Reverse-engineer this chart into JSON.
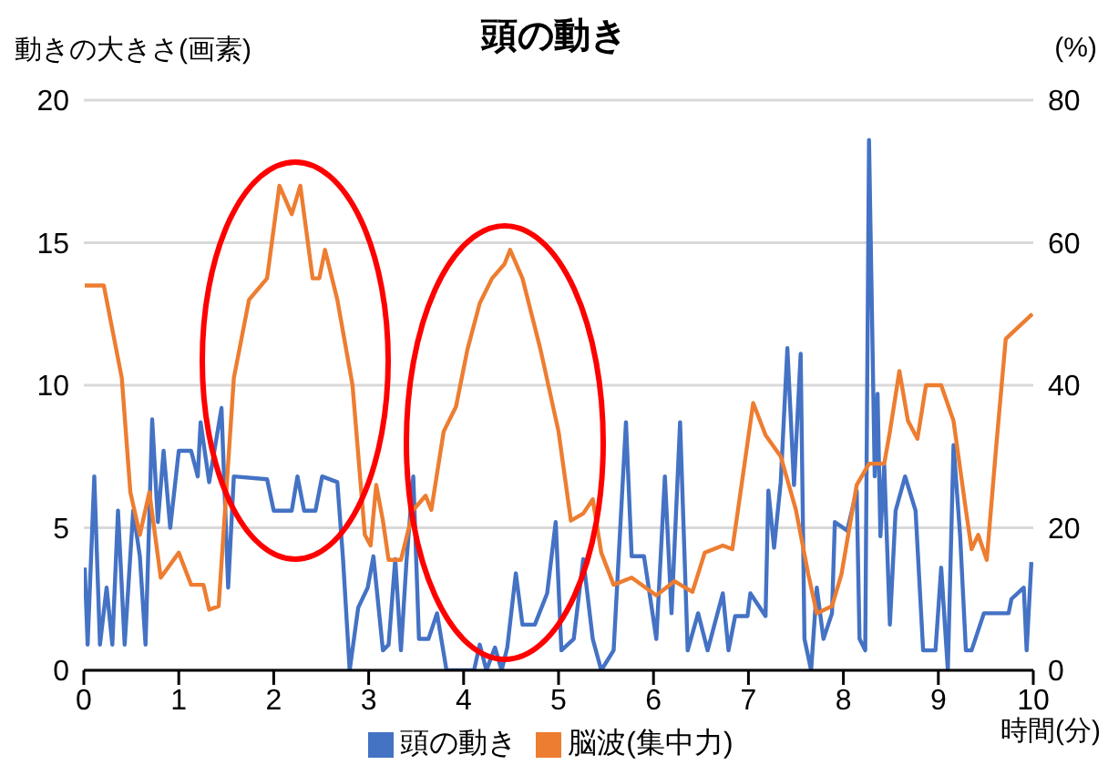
{
  "chart_data": {
    "type": "line",
    "title": "頭の動き",
    "xlabel": "時間(分)",
    "ylabel": "動きの大きさ(画素)",
    "y2label": "(%)",
    "xlim": [
      0,
      10
    ],
    "xticks": [
      0,
      1,
      2,
      3,
      4,
      5,
      6,
      7,
      8,
      9,
      10
    ],
    "ylim": [
      0,
      20
    ],
    "yticks": [
      0,
      5,
      10,
      15,
      20
    ],
    "y2lim": [
      0,
      80
    ],
    "y2ticks": [
      0,
      20,
      40,
      60,
      80
    ],
    "grid": "y",
    "legend": "bottom",
    "marker": "none",
    "line_style": "solid",
    "series": [
      {
        "name": "頭の動き",
        "color": "#4472c4",
        "x": [
          0.01,
          0.04,
          0.11,
          0.17,
          0.24,
          0.3,
          0.36,
          0.43,
          0.52,
          0.59,
          0.65,
          0.72,
          0.78,
          0.84,
          0.91,
          1.0,
          1.13,
          1.2,
          1.23,
          1.32,
          1.45,
          1.52,
          1.58,
          1.93,
          2.0,
          2.19,
          2.25,
          2.32,
          2.44,
          2.51,
          2.67,
          2.73,
          2.8,
          2.89,
          2.99,
          3.05,
          3.15,
          3.21,
          3.28,
          3.34,
          3.4,
          3.47,
          3.53,
          3.63,
          3.72,
          3.82,
          4.11,
          4.17,
          4.24,
          4.33,
          4.4,
          4.46,
          4.55,
          4.62,
          4.75,
          4.88,
          4.97,
          5.03,
          5.16,
          5.26,
          5.36,
          5.45,
          5.58,
          5.71,
          5.77,
          5.9,
          6.03,
          6.12,
          6.19,
          6.28,
          6.36,
          6.47,
          6.57,
          6.73,
          6.79,
          6.86,
          6.99,
          7.02,
          7.18,
          7.21,
          7.27,
          7.34,
          7.41,
          7.48,
          7.55,
          7.59,
          7.66,
          7.72,
          7.79,
          7.88,
          7.91,
          8.04,
          8.14,
          8.17,
          8.23,
          8.27,
          8.33,
          8.36,
          8.39,
          8.43,
          8.49,
          8.55,
          8.65,
          8.76,
          8.84,
          8.97,
          9.03,
          9.1,
          9.16,
          9.23,
          9.29,
          9.35,
          9.48,
          9.74,
          9.77,
          9.9,
          9.93,
          9.98
        ],
        "values": [
          3.6,
          0.9,
          6.8,
          0.9,
          2.9,
          0.9,
          5.6,
          0.9,
          5.6,
          4.0,
          0.9,
          8.8,
          5.2,
          7.7,
          5.0,
          7.7,
          7.7,
          6.8,
          8.7,
          6.6,
          9.2,
          2.9,
          6.8,
          6.7,
          5.6,
          5.6,
          6.8,
          5.6,
          5.6,
          6.8,
          6.6,
          3.9,
          0,
          2.2,
          2.9,
          4.0,
          0.7,
          0.9,
          3.9,
          0.7,
          3.9,
          6.8,
          1.1,
          1.1,
          2.0,
          0,
          0,
          0.9,
          0,
          0.8,
          0,
          0.8,
          3.4,
          1.6,
          1.6,
          2.7,
          5.2,
          0.7,
          1.1,
          3.9,
          1.1,
          0,
          0.7,
          8.7,
          4.0,
          4.0,
          1.1,
          6.8,
          2.0,
          8.7,
          0.7,
          2.0,
          0.7,
          2.7,
          0.7,
          1.9,
          1.9,
          2.7,
          1.9,
          6.3,
          4.3,
          6.6,
          11.3,
          6.5,
          11.1,
          1.1,
          0,
          2.9,
          1.1,
          2.0,
          5.2,
          4.9,
          6.3,
          1.1,
          0.7,
          18.6,
          6.8,
          9.7,
          4.7,
          7.2,
          1.6,
          5.6,
          6.8,
          5.6,
          0.7,
          0.7,
          3.6,
          0,
          7.9,
          4.7,
          0.7,
          0.7,
          2.0,
          2.0,
          2.5,
          2.9,
          0.7,
          3.8
        ]
      },
      {
        "name": "脳波(集中力)",
        "color": "#ed7d31",
        "axis": "y2",
        "x": [
          0.01,
          0.21,
          0.4,
          0.49,
          0.59,
          0.69,
          0.81,
          1.0,
          1.13,
          1.26,
          1.32,
          1.42,
          1.58,
          1.74,
          1.93,
          2.06,
          2.19,
          2.28,
          2.41,
          2.48,
          2.54,
          2.67,
          2.83,
          2.96,
          3.02,
          3.08,
          3.15,
          3.21,
          3.34,
          3.47,
          3.6,
          3.66,
          3.79,
          3.92,
          4.04,
          4.17,
          4.3,
          4.43,
          4.49,
          4.62,
          4.81,
          5.0,
          5.13,
          5.26,
          5.36,
          5.45,
          5.58,
          5.77,
          6.03,
          6.22,
          6.41,
          6.54,
          6.73,
          6.83,
          6.89,
          7.05,
          7.18,
          7.34,
          7.5,
          7.63,
          7.72,
          7.88,
          7.98,
          8.14,
          8.27,
          8.43,
          8.49,
          8.59,
          8.68,
          8.78,
          8.87,
          9.03,
          9.16,
          9.29,
          9.35,
          9.42,
          9.51,
          9.61,
          9.71,
          9.83,
          9.99
        ],
        "values": [
          54,
          54,
          41,
          25,
          19,
          25,
          13,
          16.5,
          12,
          12,
          8.5,
          9,
          41,
          52,
          55,
          68,
          64,
          68,
          55,
          55,
          59,
          52,
          40,
          19,
          17.5,
          26,
          21,
          15.5,
          15.5,
          22.5,
          24.5,
          22.5,
          33.5,
          37,
          45,
          51.5,
          55,
          57,
          59,
          55,
          45,
          33.5,
          21,
          22,
          24,
          16.5,
          12,
          13,
          10.5,
          12.5,
          11,
          16.5,
          17.5,
          17,
          22.5,
          37.5,
          33,
          30,
          22.5,
          13.5,
          8,
          9,
          13.5,
          26,
          29,
          29,
          33.5,
          42,
          35,
          32.5,
          40,
          40,
          35,
          22.5,
          17,
          19,
          15.5,
          31.5,
          46.5,
          48,
          50
        ]
      }
    ]
  }
}
